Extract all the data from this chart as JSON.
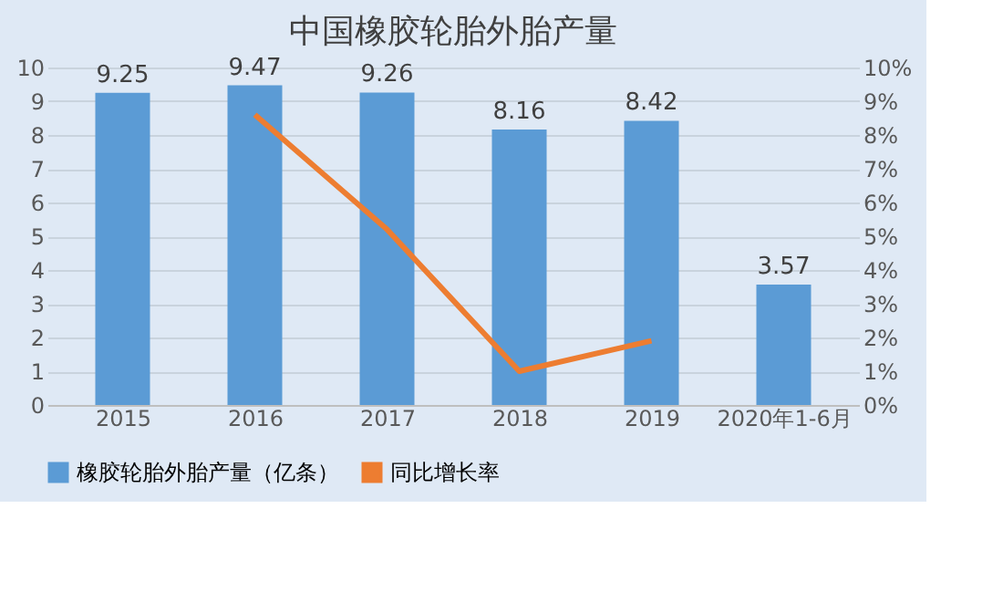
{
  "chart_data": {
    "type": "bar",
    "title": "中国橡胶轮胎外胎产量",
    "categories": [
      "2015",
      "2016",
      "2017",
      "2018",
      "2019",
      "2020年1-6月"
    ],
    "series": [
      {
        "name": "橡胶轮胎外胎产量（亿条）",
        "color": "#5b9bd5",
        "values": [
          9.25,
          9.47,
          9.26,
          8.16,
          8.42,
          3.57
        ],
        "value_labels": [
          "9.25",
          "9.47",
          "9.26",
          "8.16",
          "8.42",
          "3.57"
        ]
      },
      {
        "name": "同比增长率",
        "color": "#ed7d31",
        "type": "line",
        "axis": "y2",
        "values": [
          null,
          8.6,
          5.2,
          1.0,
          1.9,
          null
        ]
      }
    ],
    "ylim": [
      0,
      10
    ],
    "yticks": [
      0,
      1,
      2,
      3,
      4,
      5,
      6,
      7,
      8,
      9,
      10
    ],
    "y2lim": [
      0,
      10
    ],
    "y2ticks": [
      {
        "value": 0,
        "label": "0%"
      },
      {
        "value": 1,
        "label": "1%"
      },
      {
        "value": 2,
        "label": "2%"
      },
      {
        "value": 3,
        "label": "3%"
      },
      {
        "value": 4,
        "label": "4%"
      },
      {
        "value": 5,
        "label": "5%"
      },
      {
        "value": 6,
        "label": "6%"
      },
      {
        "value": 7,
        "label": "7%"
      },
      {
        "value": 8,
        "label": "8%"
      },
      {
        "value": 9,
        "label": "9%"
      },
      {
        "value": 10,
        "label": "10%"
      }
    ],
    "grid": "y",
    "legend": "bottom",
    "marker": "none",
    "line_style": "solid"
  }
}
